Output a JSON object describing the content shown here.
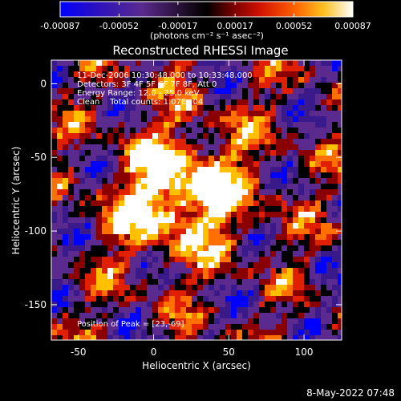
{
  "colorbar": {
    "tick_labels": [
      "-0.00087",
      "-0.00052",
      "-0.00017",
      "0.00017",
      "0.00052",
      "0.00087"
    ],
    "tick_values": [
      -0.00087,
      -0.00052,
      -0.00017,
      0.00017,
      0.00052,
      0.00087
    ],
    "range": [
      -0.00087,
      0.00087
    ],
    "unit_label": "(photons cm⁻² s⁻¹ asec⁻²)",
    "colors": [
      "#0000ff",
      "#3a1a8a",
      "#5a2a8e",
      "#000000",
      "#8a0000",
      "#e02000",
      "#ff7000",
      "#ffc000",
      "#ffffff"
    ]
  },
  "chart_data": {
    "type": "heatmap",
    "title": "Reconstructed RHESSI Image",
    "xlabel": "Heliocentric X (arcsec)",
    "ylabel": "Heliocentric Y (arcsec)",
    "xlim": [
      -68,
      125
    ],
    "ylim": [
      -174,
      16
    ],
    "x_ticks": [
      -50,
      0,
      50,
      100
    ],
    "y_ticks": [
      0,
      -50,
      -100,
      -150
    ],
    "x_tick_labels": [
      "-50",
      "0",
      "50",
      "100"
    ],
    "y_tick_labels": [
      "0",
      "-50",
      "-100",
      "-150"
    ],
    "annotations": [
      "11-Dec-2006 10:30:48.000 to 10:33:48.000",
      "Detectors: 3F 4F 5F 6F 7F 8F, Att 0",
      "Energy Range: 12.0 - 25.0 keV",
      "Clean    Total counts: 1.07E+04"
    ],
    "peak_label": "Position of Peak = [23,-69]",
    "peak": [
      23,
      -69
    ],
    "colormap": "RHESSI red/yellow (positive) over violet/blue (negative)"
  },
  "footer": {
    "timestamp": "8-May-2022 07:48"
  }
}
